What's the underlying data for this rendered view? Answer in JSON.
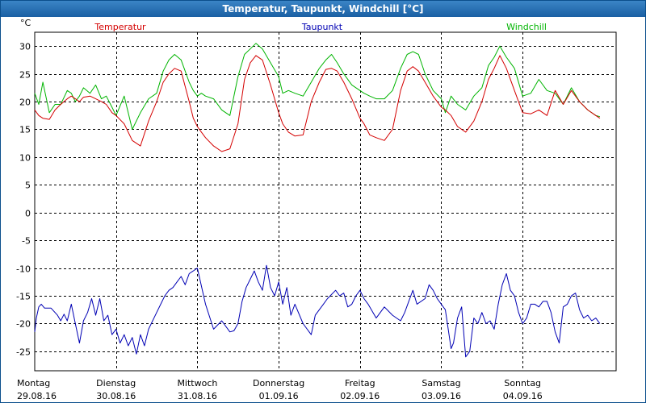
{
  "window": {
    "title": "Temperatur, Taupunkt, Windchill [°C]"
  },
  "colors": {
    "temperatur": "#d40000",
    "taupunkt": "#0000b4",
    "windchill": "#00b400",
    "grid": "#000000",
    "text": "#000000"
  },
  "chart_data": {
    "type": "line",
    "title": "Temperatur, Taupunkt, Windchill [°C]",
    "ylabel": "°C",
    "ylim": [
      -28.5,
      32.5
    ],
    "yticks": [
      30,
      25,
      20,
      15,
      10,
      5,
      0,
      -5,
      -10,
      -15,
      -20,
      -25
    ],
    "xlim": [
      0,
      7.15
    ],
    "days": [
      {
        "name": "Montag",
        "date": "29.08.16"
      },
      {
        "name": "Dienstag",
        "date": "30.08.16"
      },
      {
        "name": "Mittwoch",
        "date": "31.08.16"
      },
      {
        "name": "Donnerstag",
        "date": "01.09.16"
      },
      {
        "name": "Freitag",
        "date": "02.09.16"
      },
      {
        "name": "Samstag",
        "date": "03.09.16"
      },
      {
        "name": "Sonntag",
        "date": "04.09.16"
      }
    ],
    "grid": true,
    "x_unit": "days since 29.08.16 00:00",
    "series": [
      {
        "name": "Temperatur",
        "color": "#d40000",
        "x": [
          0,
          0.05,
          0.1,
          0.18,
          0.25,
          0.32,
          0.4,
          0.45,
          0.5,
          0.55,
          0.6,
          0.68,
          0.75,
          0.82,
          0.88,
          0.95,
          1.0,
          1.1,
          1.2,
          1.3,
          1.4,
          1.5,
          1.58,
          1.65,
          1.72,
          1.8,
          1.9,
          1.95,
          2.0,
          2.05,
          2.1,
          2.2,
          2.3,
          2.4,
          2.5,
          2.58,
          2.65,
          2.72,
          2.8,
          2.9,
          3.0,
          3.05,
          3.12,
          3.2,
          3.3,
          3.4,
          3.5,
          3.58,
          3.65,
          3.72,
          3.8,
          3.9,
          4.0,
          4.05,
          4.12,
          4.2,
          4.3,
          4.4,
          4.5,
          4.58,
          4.65,
          4.72,
          4.8,
          4.9,
          5.0,
          5.05,
          5.12,
          5.2,
          5.3,
          5.4,
          5.5,
          5.58,
          5.65,
          5.72,
          5.8,
          5.9,
          6.0,
          6.1,
          6.2,
          6.3,
          6.4,
          6.5,
          6.6,
          6.7,
          6.8,
          6.9,
          6.95
        ],
        "y": [
          18.5,
          17.5,
          17,
          16.8,
          18.5,
          19.5,
          20.5,
          21,
          20.5,
          20,
          20.8,
          21,
          20.5,
          20,
          19.5,
          18,
          17.5,
          16,
          13,
          12,
          16.5,
          20,
          23.5,
          25,
          26,
          25.5,
          20,
          17,
          15.5,
          14.5,
          13.5,
          12,
          11,
          11.5,
          16,
          24,
          27,
          28.3,
          27.5,
          23,
          18,
          16,
          14.5,
          13.8,
          14,
          20,
          23.5,
          25.8,
          26,
          25.5,
          23.5,
          20.5,
          17,
          16,
          14,
          13.5,
          13,
          15,
          22,
          25.5,
          26.3,
          25.5,
          23.5,
          21,
          19,
          18.5,
          17.5,
          15.5,
          14.5,
          16.5,
          20,
          24,
          26,
          28.3,
          26,
          22,
          18,
          17.8,
          18.5,
          17.5,
          22,
          19.5,
          22,
          20,
          18.5,
          17.5,
          17
        ]
      },
      {
        "name": "Taupunkt",
        "color": "#0000b4",
        "x": [
          0,
          0.02,
          0.05,
          0.08,
          0.12,
          0.2,
          0.28,
          0.32,
          0.36,
          0.4,
          0.45,
          0.5,
          0.55,
          0.6,
          0.65,
          0.7,
          0.75,
          0.8,
          0.85,
          0.9,
          0.95,
          1.0,
          1.05,
          1.1,
          1.15,
          1.2,
          1.25,
          1.3,
          1.35,
          1.4,
          1.5,
          1.6,
          1.65,
          1.7,
          1.75,
          1.8,
          1.85,
          1.9,
          1.95,
          2.0,
          2.1,
          2.2,
          2.3,
          2.4,
          2.45,
          2.5,
          2.55,
          2.6,
          2.65,
          2.7,
          2.75,
          2.8,
          2.85,
          2.9,
          2.95,
          3.0,
          3.05,
          3.1,
          3.15,
          3.2,
          3.3,
          3.4,
          3.45,
          3.5,
          3.55,
          3.6,
          3.7,
          3.75,
          3.8,
          3.85,
          3.9,
          3.95,
          4.0,
          4.05,
          4.1,
          4.2,
          4.3,
          4.4,
          4.45,
          4.5,
          4.55,
          4.6,
          4.65,
          4.7,
          4.8,
          4.85,
          4.9,
          4.95,
          5.0,
          5.05,
          5.1,
          5.12,
          5.15,
          5.2,
          5.25,
          5.3,
          5.35,
          5.4,
          5.45,
          5.5,
          5.55,
          5.6,
          5.65,
          5.7,
          5.75,
          5.8,
          5.85,
          5.9,
          5.95,
          6.0,
          6.05,
          6.1,
          6.15,
          6.2,
          6.25,
          6.3,
          6.35,
          6.4,
          6.45,
          6.5,
          6.55,
          6.6,
          6.65,
          6.7,
          6.75,
          6.8,
          6.85,
          6.9,
          6.95
        ],
        "y": [
          -21.5,
          -19,
          -17,
          -16.5,
          -17.2,
          -17.2,
          -18.5,
          -19.5,
          -18.3,
          -19.5,
          -16.5,
          -20,
          -23.5,
          -19.5,
          -18,
          -15.5,
          -18.5,
          -15.5,
          -19.5,
          -18.5,
          -22,
          -21,
          -23.5,
          -22,
          -24,
          -22.5,
          -25.5,
          -22,
          -24,
          -21,
          -18,
          -15,
          -14,
          -13.5,
          -12.5,
          -11.5,
          -13,
          -11,
          -10.5,
          -10,
          -16.5,
          -21,
          -19.5,
          -21.5,
          -21.3,
          -20,
          -16,
          -13.5,
          -12,
          -10.5,
          -12.5,
          -14,
          -9.5,
          -13.5,
          -15,
          -12.5,
          -16.5,
          -13.5,
          -18.5,
          -16.5,
          -20,
          -22,
          -18.5,
          -17.5,
          -16.5,
          -15.5,
          -14,
          -15,
          -14.5,
          -17,
          -16.5,
          -15,
          -14,
          -15.5,
          -16.5,
          -19,
          -17,
          -18.5,
          -19,
          -19.5,
          -18,
          -16,
          -14,
          -16.5,
          -15.5,
          -13,
          -14,
          -15.5,
          -16.5,
          -17.5,
          -22.5,
          -24.5,
          -23.5,
          -19,
          -17,
          -26,
          -25,
          -19,
          -20,
          -18,
          -20,
          -19.5,
          -21,
          -16.5,
          -13,
          -11,
          -14,
          -15,
          -18,
          -20,
          -19,
          -16.5,
          -16.5,
          -17,
          -16,
          -16,
          -18,
          -21.5,
          -23.5,
          -17,
          -16.5,
          -15,
          -14.5,
          -17.5,
          -19,
          -18.5,
          -19.5,
          -19,
          -20
        ]
      },
      {
        "name": "Windchill",
        "color": "#00b400",
        "x": [
          0,
          0.05,
          0.1,
          0.18,
          0.25,
          0.32,
          0.4,
          0.45,
          0.5,
          0.55,
          0.6,
          0.68,
          0.75,
          0.82,
          0.88,
          0.95,
          1.0,
          1.1,
          1.2,
          1.3,
          1.4,
          1.5,
          1.58,
          1.65,
          1.72,
          1.8,
          1.9,
          1.95,
          2.0,
          2.05,
          2.1,
          2.2,
          2.3,
          2.4,
          2.5,
          2.58,
          2.65,
          2.72,
          2.8,
          2.9,
          3.0,
          3.05,
          3.12,
          3.2,
          3.3,
          3.4,
          3.5,
          3.58,
          3.65,
          3.72,
          3.8,
          3.9,
          4.0,
          4.05,
          4.12,
          4.2,
          4.3,
          4.4,
          4.5,
          4.58,
          4.65,
          4.72,
          4.8,
          4.9,
          5.0,
          5.05,
          5.12,
          5.2,
          5.3,
          5.4,
          5.5,
          5.58,
          5.65,
          5.72,
          5.8,
          5.9,
          6.0,
          6.1,
          6.2,
          6.3,
          6.4,
          6.5,
          6.6,
          6.7,
          6.8,
          6.9,
          6.95
        ],
        "y": [
          21.5,
          19.5,
          23.5,
          18,
          19.5,
          19.5,
          22,
          21.5,
          20,
          21,
          22.5,
          21.5,
          23,
          20.5,
          21,
          19,
          17.5,
          21,
          15,
          18,
          20.5,
          21.5,
          25.5,
          27.5,
          28.5,
          27.5,
          23.5,
          22,
          21,
          21.5,
          21,
          20.5,
          18.5,
          17.5,
          24.5,
          28.5,
          29.5,
          30.5,
          29.5,
          27,
          24.5,
          21.5,
          22,
          21.5,
          21,
          23.5,
          26,
          27.5,
          28.5,
          27,
          25,
          23,
          22,
          21.5,
          21,
          20.5,
          20.5,
          22,
          26,
          28.5,
          29,
          28.5,
          25,
          22,
          20.5,
          18,
          21,
          19.5,
          18.5,
          21,
          22.5,
          26.5,
          28,
          30,
          28,
          26,
          21,
          21.5,
          24,
          22,
          21.5,
          19.5,
          22.5,
          20,
          18.5,
          17.5,
          17.3
        ]
      }
    ]
  }
}
